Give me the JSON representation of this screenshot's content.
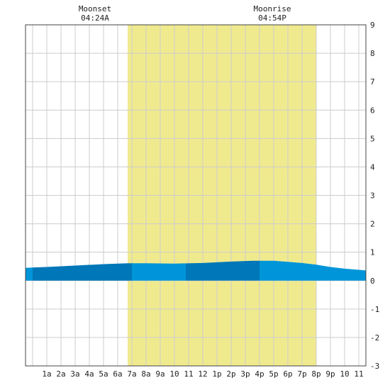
{
  "chart_data": {
    "type": "area",
    "x_unit": "hour of day",
    "xlim": [
      -0.5,
      23.5
    ],
    "ylim": [
      -3,
      9
    ],
    "x_tick_labels": [
      {
        "x": 1,
        "label": "1a"
      },
      {
        "x": 2,
        "label": "2a"
      },
      {
        "x": 3,
        "label": "3a"
      },
      {
        "x": 4,
        "label": "4a"
      },
      {
        "x": 5,
        "label": "5a"
      },
      {
        "x": 6,
        "label": "6a"
      },
      {
        "x": 7,
        "label": "7a"
      },
      {
        "x": 8,
        "label": "8a"
      },
      {
        "x": 9,
        "label": "9a"
      },
      {
        "x": 10,
        "label": "10"
      },
      {
        "x": 11,
        "label": "11"
      },
      {
        "x": 12,
        "label": "12"
      },
      {
        "x": 13,
        "label": "1p"
      },
      {
        "x": 14,
        "label": "2p"
      },
      {
        "x": 15,
        "label": "3p"
      },
      {
        "x": 16,
        "label": "4p"
      },
      {
        "x": 17,
        "label": "5p"
      },
      {
        "x": 18,
        "label": "6p"
      },
      {
        "x": 19,
        "label": "7p"
      },
      {
        "x": 20,
        "label": "8p"
      },
      {
        "x": 21,
        "label": "9p"
      },
      {
        "x": 22,
        "label": "10"
      },
      {
        "x": 23,
        "label": "11"
      }
    ],
    "y_ticks": [
      -3,
      -2,
      -1,
      0,
      1,
      2,
      3,
      4,
      5,
      6,
      7,
      8,
      9
    ],
    "daylight": {
      "start": 6.7,
      "end": 20.0
    },
    "series": [
      {
        "x": [
          -0.5,
          1,
          3,
          5,
          6.7,
          8,
          10,
          12,
          14,
          15.5,
          17,
          18,
          19,
          20,
          21,
          22,
          23.5
        ],
        "values": [
          0.45,
          0.48,
          0.53,
          0.58,
          0.61,
          0.61,
          0.6,
          0.62,
          0.67,
          0.7,
          0.7,
          0.66,
          0.62,
          0.56,
          0.48,
          0.42,
          0.36
        ]
      }
    ],
    "band_breaks": [
      -0.5,
      0,
      7,
      10.8,
      16,
      23.5
    ],
    "grid": true,
    "annotations": [
      {
        "x": 4.4,
        "label": "Moonset",
        "time": "04:24A"
      },
      {
        "x": 16.9,
        "label": "Moonrise",
        "time": "04:54P"
      }
    ],
    "colors": {
      "daylight": "#f0ea8f",
      "grid": "#cccccc",
      "tide_dark": "#0077b8",
      "tide_light": "#0095d9",
      "axis": "#444444"
    }
  }
}
